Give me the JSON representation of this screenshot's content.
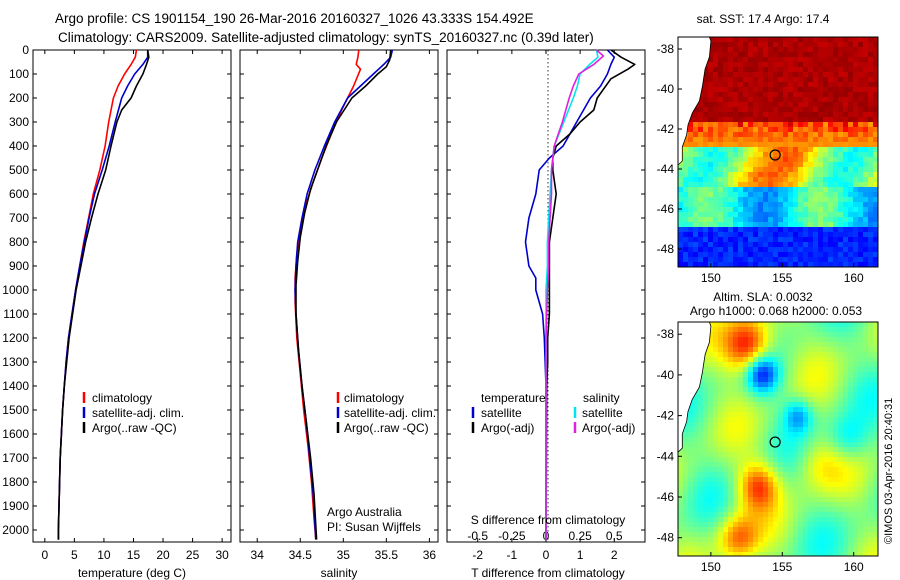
{
  "header": {
    "line1": "Argo profile: CS 1901154_190 26-Mar-2016 20160327_1026 43.333S 154.492E",
    "line2": "Climatology: CARS2009. Satellite-adjusted climatology: synTS_20160327.nc (0.39d later)"
  },
  "colors": {
    "climatology": "#ff0000",
    "satellite": "#0000cc",
    "argo": "#000000",
    "salinity_satellite": "#00e5ee",
    "salinity_argo": "#e020e0"
  },
  "chart_data": [
    {
      "type": "line",
      "id": "temperature",
      "xlabel": "temperature (deg C)",
      "ylabel": "",
      "xlim": [
        -2,
        31.5
      ],
      "ylim": [
        2050,
        0
      ],
      "xticks": [
        "0",
        "5",
        "10",
        "15",
        "20",
        "25",
        "30"
      ],
      "yticks": [
        "0",
        "100",
        "200",
        "300",
        "400",
        "500",
        "600",
        "700",
        "800",
        "900",
        "1000",
        "1100",
        "1200",
        "1300",
        "1400",
        "1500",
        "1600",
        "1700",
        "1800",
        "1900",
        "2000"
      ],
      "legend": {
        "position": "bottom-center",
        "labels": [
          "climatology",
          "satellite-adj. clim.",
          "Argo(..raw -QC)"
        ]
      },
      "series": [
        {
          "name": "climatology",
          "color": "#ff0000",
          "points": [
            [
              15.5,
              0
            ],
            [
              15.3,
              30
            ],
            [
              14.6,
              60
            ],
            [
              13.5,
              100
            ],
            [
              12.4,
              150
            ],
            [
              11.6,
              200
            ],
            [
              10.8,
              300
            ],
            [
              10.2,
              400
            ],
            [
              9.3,
              500
            ],
            [
              8.2,
              600
            ],
            [
              7.4,
              700
            ],
            [
              6.6,
              800
            ],
            [
              5.9,
              900
            ],
            [
              5.2,
              1000
            ],
            [
              4.6,
              1100
            ],
            [
              4.0,
              1200
            ],
            [
              3.6,
              1300
            ],
            [
              3.3,
              1400
            ],
            [
              3.0,
              1500
            ],
            [
              2.8,
              1600
            ],
            [
              2.6,
              1700
            ],
            [
              2.5,
              1800
            ],
            [
              2.4,
              1900
            ],
            [
              2.3,
              2000
            ],
            [
              2.3,
              2040
            ]
          ]
        },
        {
          "name": "satellite-adj. clim.",
          "color": "#0000cc",
          "points": [
            [
              17.4,
              0
            ],
            [
              17.4,
              30
            ],
            [
              16.6,
              60
            ],
            [
              15.2,
              100
            ],
            [
              14.0,
              150
            ],
            [
              13.0,
              200
            ],
            [
              11.9,
              300
            ],
            [
              10.9,
              400
            ],
            [
              9.7,
              500
            ],
            [
              8.4,
              600
            ],
            [
              7.5,
              700
            ],
            [
              6.7,
              800
            ],
            [
              5.9,
              900
            ],
            [
              5.2,
              1000
            ],
            [
              4.6,
              1100
            ],
            [
              4.0,
              1200
            ],
            [
              3.6,
              1300
            ],
            [
              3.3,
              1400
            ],
            [
              3.0,
              1500
            ],
            [
              2.8,
              1600
            ],
            [
              2.6,
              1700
            ],
            [
              2.5,
              1800
            ],
            [
              2.4,
              1900
            ],
            [
              2.3,
              2000
            ],
            [
              2.3,
              2040
            ]
          ]
        },
        {
          "name": "Argo(..raw -QC)",
          "color": "#000000",
          "points": [
            [
              17.4,
              0
            ],
            [
              17.6,
              30
            ],
            [
              17.2,
              60
            ],
            [
              16.6,
              100
            ],
            [
              15.5,
              150
            ],
            [
              14.6,
              200
            ],
            [
              13.0,
              250
            ],
            [
              12.2,
              300
            ],
            [
              11.2,
              400
            ],
            [
              10.3,
              500
            ],
            [
              9.0,
              600
            ],
            [
              7.9,
              700
            ],
            [
              6.9,
              800
            ],
            [
              6.1,
              900
            ],
            [
              5.3,
              1000
            ],
            [
              4.7,
              1100
            ],
            [
              4.1,
              1200
            ],
            [
              3.7,
              1300
            ],
            [
              3.3,
              1400
            ],
            [
              3.0,
              1500
            ],
            [
              2.8,
              1600
            ],
            [
              2.6,
              1700
            ],
            [
              2.5,
              1800
            ],
            [
              2.4,
              1900
            ],
            [
              2.3,
              2000
            ],
            [
              2.3,
              2040
            ]
          ]
        }
      ]
    },
    {
      "type": "line",
      "id": "salinity",
      "xlabel": "salinity",
      "ylabel": "",
      "xlim": [
        33.8,
        36.1
      ],
      "ylim": [
        2050,
        0
      ],
      "xticks": [
        "34",
        "34.5",
        "35",
        "35.5",
        "36"
      ],
      "legend": {
        "position": "bottom-center",
        "labels": [
          "climatology",
          "satellite-adj. clim.",
          "Argo(..raw -QC)"
        ]
      },
      "annotation": [
        "Argo Australia",
        "PI: Susan Wijffels"
      ],
      "series": [
        {
          "name": "climatology",
          "color": "#ff0000",
          "points": [
            [
              35.18,
              0
            ],
            [
              35.17,
              30
            ],
            [
              35.15,
              60
            ],
            [
              35.2,
              80
            ],
            [
              35.12,
              150
            ],
            [
              34.98,
              250
            ],
            [
              34.86,
              350
            ],
            [
              34.75,
              450
            ],
            [
              34.65,
              550
            ],
            [
              34.56,
              650
            ],
            [
              34.5,
              750
            ],
            [
              34.46,
              850
            ],
            [
              34.44,
              950
            ],
            [
              34.44,
              1050
            ],
            [
              34.46,
              1200
            ],
            [
              34.5,
              1350
            ],
            [
              34.54,
              1500
            ],
            [
              34.59,
              1650
            ],
            [
              34.63,
              1800
            ],
            [
              34.66,
              1950
            ],
            [
              34.68,
              2040
            ]
          ]
        },
        {
          "name": "satellite-adj. clim.",
          "color": "#0000cc",
          "points": [
            [
              35.57,
              0
            ],
            [
              35.55,
              30
            ],
            [
              35.47,
              60
            ],
            [
              35.35,
              100
            ],
            [
              35.2,
              150
            ],
            [
              35.05,
              200
            ],
            [
              34.9,
              300
            ],
            [
              34.78,
              400
            ],
            [
              34.67,
              500
            ],
            [
              34.58,
              600
            ],
            [
              34.52,
              700
            ],
            [
              34.47,
              800
            ],
            [
              34.45,
              900
            ],
            [
              34.44,
              1000
            ],
            [
              34.45,
              1100
            ],
            [
              34.48,
              1250
            ],
            [
              34.52,
              1400
            ],
            [
              34.57,
              1550
            ],
            [
              34.61,
              1700
            ],
            [
              34.65,
              1850
            ],
            [
              34.68,
              2040
            ]
          ]
        },
        {
          "name": "Argo(..raw -QC)",
          "color": "#000000",
          "points": [
            [
              35.55,
              0
            ],
            [
              35.54,
              40
            ],
            [
              35.5,
              70
            ],
            [
              35.4,
              100
            ],
            [
              35.26,
              150
            ],
            [
              35.1,
              200
            ],
            [
              34.92,
              300
            ],
            [
              34.8,
              400
            ],
            [
              34.7,
              500
            ],
            [
              34.62,
              580
            ],
            [
              34.55,
              680
            ],
            [
              34.5,
              780
            ],
            [
              34.47,
              880
            ],
            [
              34.45,
              980
            ],
            [
              34.45,
              1100
            ],
            [
              34.48,
              1250
            ],
            [
              34.52,
              1400
            ],
            [
              34.57,
              1550
            ],
            [
              34.62,
              1700
            ],
            [
              34.66,
              1850
            ],
            [
              34.69,
              2040
            ]
          ]
        }
      ]
    },
    {
      "type": "line",
      "id": "differences",
      "xlabel": "T difference from climatology",
      "xlabel_top": "S difference from climatology",
      "xlim": [
        -2.9,
        2.9
      ],
      "ylim": [
        2050,
        0
      ],
      "xticks": [
        "-2",
        "-1",
        "0",
        "1",
        "2"
      ],
      "xticks_salinity": [
        "-0.5",
        "-0.25",
        "0",
        "0.25",
        "0.5"
      ],
      "legend": {
        "position": "bottom",
        "temperature_title": "temperature",
        "salinity_title": "salinity",
        "labels": [
          "satellite",
          "Argo(-adj)",
          "satellite",
          "Argo(-adj)"
        ]
      },
      "series": [
        {
          "name": "T satellite",
          "color": "#0000cc",
          "points": [
            [
              1.8,
              0
            ],
            [
              2.0,
              30
            ],
            [
              1.9,
              60
            ],
            [
              1.8,
              100
            ],
            [
              1.6,
              150
            ],
            [
              1.3,
              200
            ],
            [
              0.9,
              300
            ],
            [
              0.5,
              400
            ],
            [
              0.1,
              450
            ],
            [
              -0.2,
              500
            ],
            [
              -0.3,
              600
            ],
            [
              -0.5,
              700
            ],
            [
              -0.6,
              800
            ],
            [
              -0.5,
              900
            ],
            [
              -0.3,
              950
            ],
            [
              -0.3,
              1000
            ],
            [
              -0.1,
              1100
            ],
            [
              -0.05,
              1200
            ],
            [
              0.0,
              1400
            ],
            [
              0.0,
              2040
            ]
          ]
        },
        {
          "name": "T Argo(-adj)",
          "color": "#000000",
          "points": [
            [
              1.9,
              0
            ],
            [
              2.2,
              30
            ],
            [
              2.6,
              60
            ],
            [
              2.4,
              80
            ],
            [
              1.9,
              120
            ],
            [
              1.5,
              200
            ],
            [
              1.4,
              250
            ],
            [
              1.0,
              300
            ],
            [
              0.7,
              350
            ],
            [
              0.3,
              400
            ],
            [
              0.2,
              450
            ],
            [
              0.2,
              500
            ],
            [
              0.3,
              600
            ],
            [
              0.2,
              700
            ],
            [
              0.1,
              800
            ],
            [
              0.1,
              900
            ],
            [
              0.1,
              1000
            ],
            [
              0.1,
              1100
            ],
            [
              0.05,
              1200
            ],
            [
              0.05,
              1300
            ],
            [
              0.02,
              1400
            ],
            [
              0.0,
              2040
            ]
          ]
        },
        {
          "name": "S satellite",
          "color": "#00e5ee",
          "points": [
            [
              0.37,
              0
            ],
            [
              0.38,
              30
            ],
            [
              0.32,
              60
            ],
            [
              0.25,
              100
            ],
            [
              0.23,
              150
            ],
            [
              0.2,
              200
            ],
            [
              0.13,
              300
            ],
            [
              0.06,
              400
            ],
            [
              0.04,
              500
            ],
            [
              0.03,
              600
            ],
            [
              0.02,
              700
            ],
            [
              0.01,
              800
            ],
            [
              0.01,
              900
            ],
            [
              0.0,
              1000
            ],
            [
              0.0,
              2040
            ]
          ]
        },
        {
          "name": "S Argo(-adj)",
          "color": "#e020e0",
          "points": [
            [
              0.37,
              0
            ],
            [
              0.42,
              25
            ],
            [
              0.35,
              60
            ],
            [
              0.24,
              100
            ],
            [
              0.2,
              150
            ],
            [
              0.17,
              200
            ],
            [
              0.12,
              300
            ],
            [
              0.06,
              400
            ],
            [
              0.04,
              500
            ],
            [
              0.04,
              600
            ],
            [
              0.03,
              700
            ],
            [
              0.02,
              800
            ],
            [
              0.02,
              900
            ],
            [
              0.01,
              1000
            ],
            [
              0.0,
              1200
            ],
            [
              0.0,
              2040
            ]
          ]
        }
      ]
    }
  ],
  "maps": {
    "sst": {
      "title": "sat. SST: 17.4  Argo: 17.4",
      "lat_ticks": [
        "-38",
        "-40",
        "-42",
        "-44",
        "-46",
        "-48"
      ],
      "lon_ticks": [
        "150",
        "155",
        "160"
      ],
      "lat_range": [
        -48.9,
        -37.4
      ],
      "lon_range": [
        147.7,
        161.7
      ],
      "float_position": [
        154.5,
        -43.3
      ]
    },
    "sla": {
      "title_line1": "Altim. SLA: 0.0032",
      "title_line2": "Argo h1000: 0.068 h2000: 0.053",
      "lat_ticks": [
        "-38",
        "-40",
        "-42",
        "-44",
        "-46",
        "-48"
      ],
      "lon_ticks": [
        "150",
        "155",
        "160"
      ],
      "lat_range": [
        -48.9,
        -37.4
      ],
      "lon_range": [
        147.7,
        161.7
      ],
      "float_position": [
        154.5,
        -43.3
      ]
    },
    "credit": "©IMOS 03-Apr-2016 20:40:31"
  }
}
